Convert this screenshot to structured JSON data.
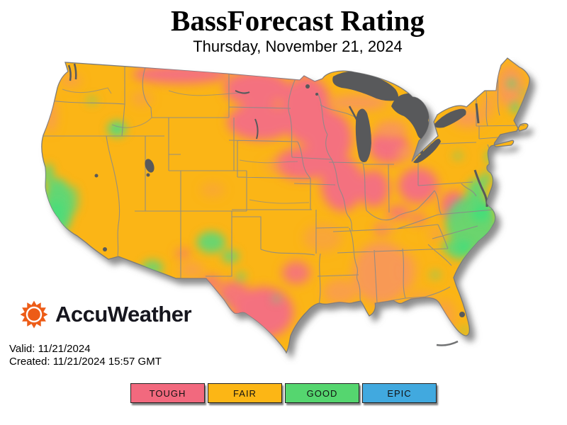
{
  "header": {
    "title": "BassForecast Rating",
    "subtitle": "Thursday, November 21, 2024"
  },
  "branding": {
    "wordmark": "AccuWeather"
  },
  "meta": {
    "valid_line": "Valid: 11/21/2024",
    "created_line": "Created: 11/21/2024 15:57 GMT"
  },
  "legend": {
    "items": [
      {
        "label": "TOUGH",
        "color": "#F2697E"
      },
      {
        "label": "FAIR",
        "color": "#FCB615"
      },
      {
        "label": "GOOD",
        "color": "#55D66F"
      },
      {
        "label": "EPIC",
        "color": "#41A9DF"
      }
    ]
  },
  "map": {
    "description": "United States BassForecast rating surface for Thursday, November 21, 2024",
    "colors": {
      "fair_base": "#FBB517",
      "tough": "#F4717F",
      "transition_orange": "#F8985A",
      "good": "#5BD878",
      "good_bright": "#3FDF7D",
      "epic": "#41A9DF",
      "water": "#58595B",
      "state_border": "#8A8A8A",
      "coast_shadow": "#707070",
      "logo_orange": "#ED5C17"
    },
    "regions": [
      {
        "area": "Upper Midwest (MN, WI, IA, IL, IN, MI, OH, WV)",
        "rating": "TOUGH"
      },
      {
        "area": "Northern Plains (ND, SD, northern MT)",
        "rating": "TOUGH"
      },
      {
        "area": "South and Central Texas",
        "rating": "TOUGH"
      },
      {
        "area": "Most of the West, Central Plains, Northeast and Florida",
        "rating": "FAIR"
      },
      {
        "area": "Deep South (LA, MS, AL), Michigan transition zones and Maine",
        "rating": "FAIR / TOUGH transition"
      },
      {
        "area": "Central California coast",
        "rating": "GOOD"
      },
      {
        "area": "Coastal Virginia and the Carolinas",
        "rating": "GOOD"
      },
      {
        "area": "Eastern New Mexico / Texas Panhandle",
        "rating": "GOOD"
      }
    ]
  }
}
